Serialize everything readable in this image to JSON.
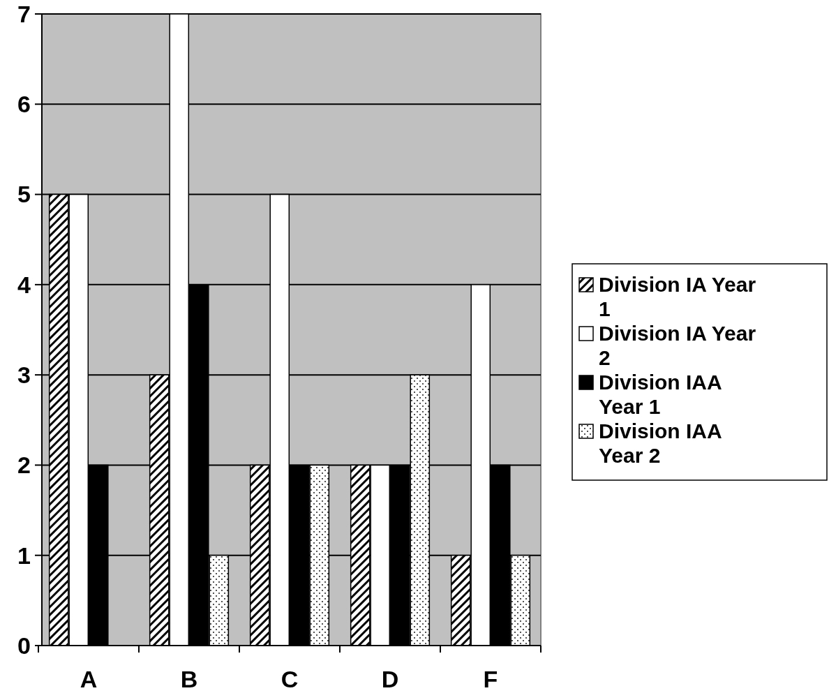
{
  "chart_data": {
    "type": "bar",
    "categories": [
      "A",
      "B",
      "C",
      "D",
      "F"
    ],
    "series": [
      {
        "name": "Division IA Year 1",
        "color": "#000000",
        "values": [
          5,
          3,
          2,
          2,
          1
        ]
      },
      {
        "name": "Division IA Year 2",
        "color": "#ffffff",
        "values": [
          5,
          7,
          5,
          2,
          4
        ]
      },
      {
        "name": "Division IAA Year 1",
        "color": "#000000",
        "values": [
          2,
          4,
          2,
          2,
          2
        ]
      },
      {
        "name": "Division IAA Year 2",
        "color": "#000000",
        "values": [
          0,
          1,
          2,
          3,
          1
        ]
      }
    ],
    "ylim": [
      0,
      7
    ],
    "yticks": [
      0,
      1,
      2,
      3,
      4,
      5,
      6,
      7
    ],
    "grid": "y",
    "legend": "right"
  }
}
